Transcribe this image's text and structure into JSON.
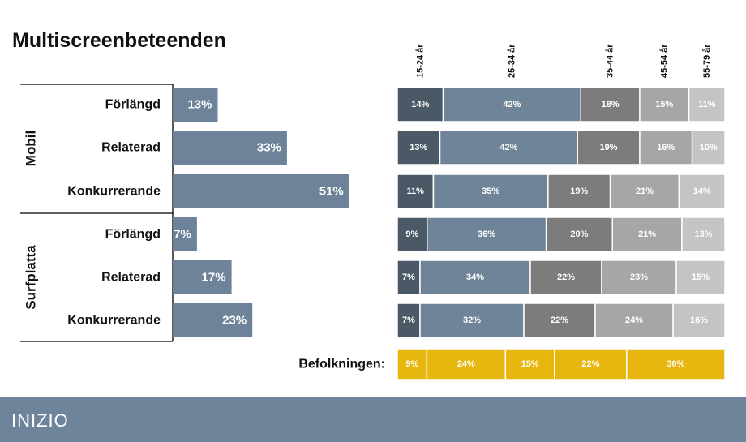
{
  "title": "Multiscreenbeteenden",
  "footer": {
    "logo": "INIZIO"
  },
  "colors": {
    "left_bar": "#6e8399",
    "age": [
      "#4b5866",
      "#6f8499",
      "#7c7c7c",
      "#a6a6a6",
      "#c4c4c4"
    ],
    "population": "#e8b70f",
    "footer": "#6e849b"
  },
  "chart_data": [
    {
      "type": "bar",
      "orientation": "horizontal",
      "groups": [
        {
          "name": "Mobil",
          "categories": [
            "Förlängd",
            "Relaterad",
            "Konkurrerande"
          ]
        },
        {
          "name": "Surfplatta",
          "categories": [
            "Förlängd",
            "Relaterad",
            "Konkurrerande"
          ]
        }
      ],
      "values": [
        13,
        33,
        51,
        7,
        17,
        23
      ],
      "labels": [
        "13%",
        "33%",
        "51%",
        "7%",
        "17%",
        "23%"
      ],
      "xlim": [
        0,
        100
      ]
    },
    {
      "type": "bar",
      "orientation": "horizontal",
      "stacked": true,
      "percent": true,
      "series_labels": [
        "15-24 år",
        "25-34 år",
        "35-44 år",
        "45-54 år",
        "55-79 år"
      ],
      "rows": [
        {
          "values": [
            14,
            42,
            18,
            15,
            11
          ],
          "labels": [
            "14%",
            "42%",
            "18%",
            "15%",
            "11%"
          ]
        },
        {
          "values": [
            13,
            42,
            19,
            16,
            10
          ],
          "labels": [
            "13%",
            "42%",
            "19%",
            "16%",
            "10%"
          ]
        },
        {
          "values": [
            11,
            35,
            19,
            21,
            14
          ],
          "labels": [
            "11%",
            "35%",
            "19%",
            "21%",
            "14%"
          ]
        },
        {
          "values": [
            9,
            36,
            20,
            21,
            13
          ],
          "labels": [
            "9%",
            "36%",
            "20%",
            "21%",
            "13%"
          ]
        },
        {
          "values": [
            7,
            34,
            22,
            23,
            15
          ],
          "labels": [
            "7%",
            "34%",
            "22%",
            "23%",
            "15%"
          ]
        },
        {
          "values": [
            7,
            32,
            22,
            24,
            16
          ],
          "labels": [
            "7%",
            "32%",
            "22%",
            "24%",
            "16%"
          ]
        }
      ],
      "population": {
        "label": "Befolkningen:",
        "values": [
          9,
          24,
          15,
          22,
          30
        ],
        "labels": [
          "9%",
          "24%",
          "15%",
          "22%",
          "30%"
        ]
      }
    }
  ]
}
